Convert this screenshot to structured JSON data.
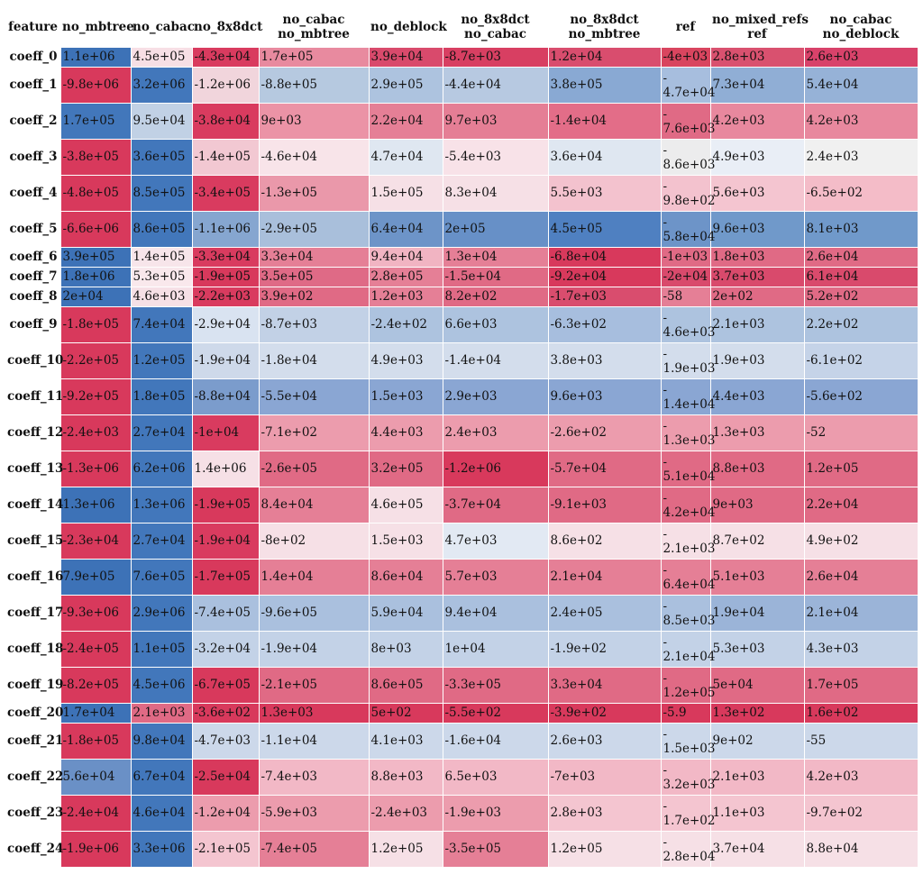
{
  "colors": {
    "positive": "#3b73b9",
    "negative": "#d8395c",
    "neutral": "#f0f0f0"
  },
  "chart_data": {
    "type": "heatmap",
    "title": "",
    "corner_label": "feature",
    "columns": [
      "no_mbtree",
      "no_cabac",
      "no_8x8dct",
      "no_cabac\nno_mbtree",
      "no_deblock",
      "no_8x8dct\nno_cabac",
      "no_8x8dct\nno_mbtree",
      "ref",
      "no_mixed_refs\nref",
      "no_cabac\nno_deblock"
    ],
    "rows": [
      "coeff_0",
      "coeff_1",
      "coeff_2",
      "coeff_3",
      "coeff_4",
      "coeff_5",
      "coeff_6",
      "coeff_7",
      "coeff_8",
      "coeff_9",
      "coeff_10",
      "coeff_11",
      "coeff_12",
      "coeff_13",
      "coeff_14",
      "coeff_15",
      "coeff_16",
      "coeff_17",
      "coeff_18",
      "coeff_19",
      "coeff_20",
      "coeff_21",
      "coeff_22",
      "coeff_23",
      "coeff_24"
    ],
    "values": [
      [
        "1.1e+06",
        "4.5e+05",
        "-4.3e+04",
        "1.7e+05",
        "3.9e+04",
        "-8.7e+03",
        "1.2e+04",
        "-4e+03",
        "2.8e+03",
        "2.6e+03"
      ],
      [
        "-9.8e+06",
        "3.2e+06",
        "-1.2e+06",
        "-8.8e+05",
        "2.9e+05",
        "-4.4e+04",
        "3.8e+05",
        "-4.7e+04",
        "7.3e+04",
        "5.4e+04"
      ],
      [
        "1.7e+05",
        "9.5e+04",
        "-3.8e+04",
        "9e+03",
        "2.2e+04",
        "9.7e+03",
        "-1.4e+04",
        "-7.6e+03",
        "4.2e+03",
        "4.2e+03"
      ],
      [
        "-3.8e+05",
        "3.6e+05",
        "-1.4e+05",
        "-4.6e+04",
        "4.7e+04",
        "-5.4e+03",
        "3.6e+04",
        "-8.6e+03",
        "4.9e+03",
        "2.4e+03"
      ],
      [
        "-4.8e+05",
        "8.5e+05",
        "-3.4e+05",
        "-1.3e+05",
        "1.5e+05",
        "8.3e+04",
        "5.5e+03",
        "-9.8e+02",
        "5.6e+03",
        "-6.5e+02"
      ],
      [
        "-6.6e+06",
        "8.6e+05",
        "-1.1e+06",
        "-2.9e+05",
        "6.4e+04",
        "2e+05",
        "4.5e+05",
        "-5.8e+04",
        "9.6e+03",
        "8.1e+03"
      ],
      [
        "3.9e+05",
        "1.4e+05",
        "-3.3e+04",
        "3.3e+04",
        "9.4e+04",
        "1.3e+04",
        "-6.8e+04",
        "-1e+03",
        "1.8e+03",
        "2.6e+04"
      ],
      [
        "1.8e+06",
        "5.3e+05",
        "-1.9e+05",
        "3.5e+05",
        "2.8e+05",
        "-1.5e+04",
        "-9.2e+04",
        "-2e+04",
        "3.7e+03",
        "6.1e+04"
      ],
      [
        "2e+04",
        "4.6e+03",
        "-2.2e+03",
        "3.9e+02",
        "1.2e+03",
        "8.2e+02",
        "-1.7e+03",
        "-58",
        "2e+02",
        "5.2e+02"
      ],
      [
        "-1.8e+05",
        "7.4e+04",
        "-2.9e+04",
        "-8.7e+03",
        "-2.4e+02",
        "6.6e+03",
        "-6.3e+02",
        "-4.6e+03",
        "2.1e+03",
        "2.2e+02"
      ],
      [
        "-2.2e+05",
        "1.2e+05",
        "-1.9e+04",
        "-1.8e+04",
        "4.9e+03",
        "-1.4e+04",
        "3.8e+03",
        "-1.9e+03",
        "1.9e+03",
        "-6.1e+02"
      ],
      [
        "-9.2e+05",
        "1.8e+05",
        "-8.8e+04",
        "-5.5e+04",
        "1.5e+03",
        "2.9e+03",
        "9.6e+03",
        "-1.4e+04",
        "4.4e+03",
        "-5.6e+02"
      ],
      [
        "-2.4e+03",
        "2.7e+04",
        "-1e+04",
        "-7.1e+02",
        "4.4e+03",
        "2.4e+03",
        "-2.6e+02",
        "-1.3e+03",
        "1.3e+03",
        "-52"
      ],
      [
        "-1.3e+06",
        "6.2e+06",
        "1.4e+06",
        "-2.6e+05",
        "3.2e+05",
        "-1.2e+06",
        "-5.7e+04",
        "-5.1e+04",
        "8.8e+03",
        "1.2e+05"
      ],
      [
        "1.3e+06",
        "1.3e+06",
        "-1.9e+05",
        "8.4e+04",
        "4.6e+05",
        "-3.7e+04",
        "-9.1e+03",
        "-4.2e+04",
        "9e+03",
        "2.2e+04"
      ],
      [
        "-2.3e+04",
        "2.7e+04",
        "-1.9e+04",
        "-8e+02",
        "1.5e+03",
        "4.7e+03",
        "8.6e+02",
        "-2.1e+03",
        "8.7e+02",
        "4.9e+02"
      ],
      [
        "7.9e+05",
        "7.6e+05",
        "-1.7e+05",
        "1.4e+04",
        "8.6e+04",
        "5.7e+03",
        "2.1e+04",
        "-6.4e+04",
        "5.1e+03",
        "2.6e+04"
      ],
      [
        "-9.3e+06",
        "2.9e+06",
        "-7.4e+05",
        "-9.6e+05",
        "5.9e+04",
        "9.4e+04",
        "2.4e+05",
        "-8.5e+03",
        "1.9e+04",
        "2.1e+04"
      ],
      [
        "-2.4e+05",
        "1.1e+05",
        "-3.2e+04",
        "-1.9e+04",
        "8e+03",
        "1e+04",
        "-1.9e+02",
        "-2.1e+04",
        "5.3e+03",
        "4.3e+03"
      ],
      [
        "-8.2e+05",
        "4.5e+06",
        "-6.7e+05",
        "-2.1e+05",
        "8.6e+05",
        "-3.3e+05",
        "3.3e+04",
        "-1.2e+05",
        "5e+04",
        "1.7e+05"
      ],
      [
        "1.7e+04",
        "2.1e+03",
        "-3.6e+02",
        "1.3e+03",
        "5e+02",
        "-5.5e+02",
        "-3.9e+02",
        "-5.9",
        "1.3e+02",
        "1.6e+02"
      ],
      [
        "-1.8e+05",
        "9.8e+04",
        "-4.7e+03",
        "-1.1e+04",
        "4.1e+03",
        "-1.6e+04",
        "2.6e+03",
        "-1.5e+03",
        "9e+02",
        "-55"
      ],
      [
        "5.6e+04",
        "6.7e+04",
        "-2.5e+04",
        "-7.4e+03",
        "8.8e+03",
        "6.5e+03",
        "-7e+03",
        "-3.2e+03",
        "2.1e+03",
        "4.2e+03"
      ],
      [
        "-2.4e+04",
        "4.6e+04",
        "-1.2e+04",
        "-5.9e+03",
        "-2.4e+03",
        "-1.9e+03",
        "2.8e+03",
        "-1.7e+02",
        "1.1e+03",
        "-9.7e+02"
      ],
      [
        "-1.9e+06",
        "3.3e+06",
        "-2.1e+05",
        "-7.4e+05",
        "1.2e+05",
        "-3.5e+05",
        "1.2e+05",
        "-2.8e+04",
        "3.7e+04",
        "8.8e+04"
      ]
    ],
    "colors": [
      [
        "#3d72b7",
        "#f7dfe5",
        "#d93b5f",
        "#e88a9f",
        "#d94a6c",
        "#d83f62",
        "#d94d6e",
        "#d9455f",
        "#d9516f",
        "#d8426a"
      ],
      [
        "#d8395c",
        "#4277bb",
        "#f1d5dc",
        "#b6c9e0",
        "#adc3df",
        "#b7c9e1",
        "#89a9d3",
        "#a7bede",
        "#90aed5",
        "#96b2d7"
      ],
      [
        "#4277bb",
        "#c1d1e5",
        "#d93b5f",
        "#eb93a6",
        "#e57f96",
        "#e57e95",
        "#e36d88",
        "#e06a85",
        "#e8889e",
        "#e8889e"
      ],
      [
        "#d8395c",
        "#4277bb",
        "#f2c8d2",
        "#f8e4e9",
        "#dfe7f1",
        "#f8e2e8",
        "#dfe7f1",
        "#ececed",
        "#e9eef6",
        "#f0f0f0"
      ],
      [
        "#d8395c",
        "#4277bb",
        "#d93b5f",
        "#ea98aa",
        "#f6e0e6",
        "#f6e0e6",
        "#f3c2ce",
        "#f3c2ce",
        "#f4c5d0",
        "#f4bcc8"
      ],
      [
        "#d8395c",
        "#4277bb",
        "#86a6d0",
        "#a9bfdb",
        "#6d94c8",
        "#6790c7",
        "#4f80c1",
        "#6d94c8",
        "#7099ca",
        "#7099ca"
      ],
      [
        "#3d72b7",
        "#f7e5ea",
        "#d93b5f",
        "#e57f96",
        "#f1b4c2",
        "#e57f96",
        "#d8395c",
        "#e06a85",
        "#e06a85",
        "#e06a85"
      ],
      [
        "#3d72b7",
        "#f9e8ec",
        "#d8395c",
        "#df6a86",
        "#e57f96",
        "#e06a85",
        "#d8395c",
        "#d94a6c",
        "#d94a6c",
        "#d94a6c"
      ],
      [
        "#3d72b7",
        "#f6e0e6",
        "#d93b5f",
        "#e06a85",
        "#e57f96",
        "#e06a85",
        "#d94d6e",
        "#e57f96",
        "#e06a85",
        "#e06a85"
      ],
      [
        "#d8395c",
        "#4277bb",
        "#d9e3f1",
        "#c2d1e6",
        "#adc3df",
        "#adc3df",
        "#a7bede",
        "#adc3df",
        "#adc3df",
        "#adc3df"
      ],
      [
        "#d8395c",
        "#4277bb",
        "#ced9ea",
        "#d3ddec",
        "#d3ddec",
        "#d3ddec",
        "#d3ddec",
        "#d3ddec",
        "#d3ddec",
        "#c5d3e8"
      ],
      [
        "#d8395c",
        "#4277bb",
        "#7b9ccc",
        "#8aa6d3",
        "#8aa6d3",
        "#8aa6d3",
        "#8aa6d3",
        "#8aa6d3",
        "#8aa6d3",
        "#8aa6d3"
      ],
      [
        "#d8395c",
        "#4277bb",
        "#d93b5f",
        "#ec9cad",
        "#ec9cad",
        "#ec9cad",
        "#ec9cad",
        "#ec9cad",
        "#ec9cad",
        "#ec9cad"
      ],
      [
        "#d8395c",
        "#4277bb",
        "#f6e0e6",
        "#e06a85",
        "#e06a85",
        "#d8395c",
        "#e06a85",
        "#e06a85",
        "#e06a85",
        "#e06a85"
      ],
      [
        "#3d72b7",
        "#4277bb",
        "#d8395c",
        "#e57f96",
        "#f6e0e6",
        "#e06a85",
        "#e06a85",
        "#e06a85",
        "#e06a85",
        "#e06a85"
      ],
      [
        "#d8395c",
        "#4277bb",
        "#d93b5f",
        "#f6e0e6",
        "#f6e0e6",
        "#e2e9f3",
        "#f6e0e6",
        "#f6e0e6",
        "#f6e0e6",
        "#f6e0e6"
      ],
      [
        "#3d72b7",
        "#4277bb",
        "#d8395c",
        "#e57f96",
        "#e57f96",
        "#e57f96",
        "#e57f96",
        "#e57f96",
        "#e57f96",
        "#e57f96"
      ],
      [
        "#d8395c",
        "#4277bb",
        "#aac0de",
        "#aac0de",
        "#aac0de",
        "#aac0de",
        "#aac0de",
        "#aac0de",
        "#9bb4d8",
        "#9bb4d8"
      ],
      [
        "#d8395c",
        "#4277bb",
        "#c3d2e7",
        "#c3d2e7",
        "#c3d2e7",
        "#c3d2e7",
        "#c3d2e7",
        "#c3d2e7",
        "#c3d2e7",
        "#c3d2e7"
      ],
      [
        "#d8395c",
        "#4277bb",
        "#d8395c",
        "#e06a85",
        "#e06a85",
        "#e06a85",
        "#e06a85",
        "#e06a85",
        "#e06a85",
        "#e06a85"
      ],
      [
        "#3d72b7",
        "#e06a85",
        "#d8395c",
        "#d8395c",
        "#d8395c",
        "#d8395c",
        "#d8395c",
        "#d8395c",
        "#d8395c",
        "#d8395c"
      ],
      [
        "#d8395c",
        "#4277bb",
        "#ccd8ea",
        "#ccd8ea",
        "#ccd8ea",
        "#ccd8ea",
        "#ccd8ea",
        "#ccd8ea",
        "#ccd8ea",
        "#ccd8ea"
      ],
      [
        "#6a90c6",
        "#4277bb",
        "#d8395c",
        "#f2b8c6",
        "#f2b8c6",
        "#f2b8c6",
        "#f2b8c6",
        "#f2b8c6",
        "#f2b8c6",
        "#f2b8c6"
      ],
      [
        "#d8395c",
        "#4277bb",
        "#ec9cad",
        "#ec9cad",
        "#ec9cad",
        "#ec9cad",
        "#f4c5d0",
        "#f4c5d0",
        "#f4c5d0",
        "#f4c5d0"
      ],
      [
        "#d8395c",
        "#4277bb",
        "#f4c5d0",
        "#e57f96",
        "#f6e0e6",
        "#e57f96",
        "#f6e0e6",
        "#f6e0e6",
        "#f6e0e6",
        "#f6e0e6"
      ]
    ]
  }
}
